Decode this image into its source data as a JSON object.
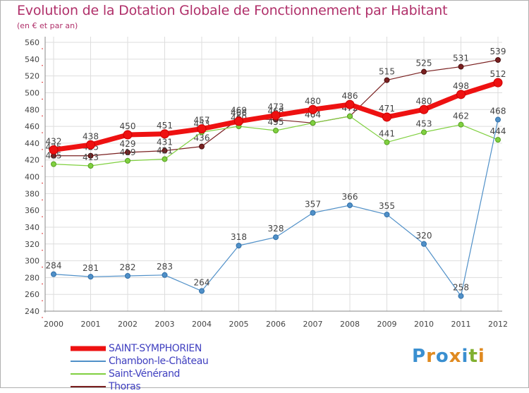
{
  "chart_data": {
    "type": "line",
    "title": "Evolution de la Dotation Globale de Fonctionnement par Habitant",
    "subtitle": "(en € et par an)",
    "xlabel": "",
    "ylabel": "",
    "ylim": [
      240,
      560
    ],
    "yticks": [
      240,
      260,
      280,
      300,
      320,
      340,
      360,
      380,
      400,
      420,
      440,
      460,
      480,
      500,
      520,
      540,
      560
    ],
    "categories": [
      "2000",
      "2001",
      "2002",
      "2003",
      "2004",
      "2005",
      "2006",
      "2007",
      "2008",
      "2009",
      "2010",
      "2011",
      "2012"
    ],
    "grid": true,
    "legend_position": "bottom-left",
    "series": [
      {
        "name": "Thoras",
        "color": "#7a2020",
        "values": [
          425,
          425,
          429,
          431,
          436,
          469,
          468,
          464,
          472,
          515,
          525,
          531,
          539
        ]
      },
      {
        "name": "Saint-Vénérand",
        "color": "#80d040",
        "values": [
          415,
          413,
          419,
          421,
          453,
          460,
          455,
          464,
          472,
          441,
          453,
          462,
          444
        ]
      },
      {
        "name": "Chambon-le-Château",
        "color": "#5090c8",
        "values": [
          284,
          281,
          282,
          283,
          264,
          318,
          328,
          357,
          366,
          355,
          320,
          258,
          468
        ]
      },
      {
        "name": "SAINT-SYMPHORIEN",
        "color": "#ee1111",
        "values": [
          432,
          438,
          450,
          451,
          457,
          466,
          473,
          480,
          486,
          471,
          480,
          498,
          512
        ]
      }
    ]
  },
  "legend": {
    "items": [
      {
        "label": "SAINT-SYMPHORIEN",
        "color": "#ee1111"
      },
      {
        "label": "Chambon-le-Château",
        "color": "#5090c8"
      },
      {
        "label": "Saint-Vénérand",
        "color": "#80d040"
      },
      {
        "label": "Thoras",
        "color": "#7a2020"
      }
    ]
  },
  "logo": {
    "text": "Proxiti"
  }
}
